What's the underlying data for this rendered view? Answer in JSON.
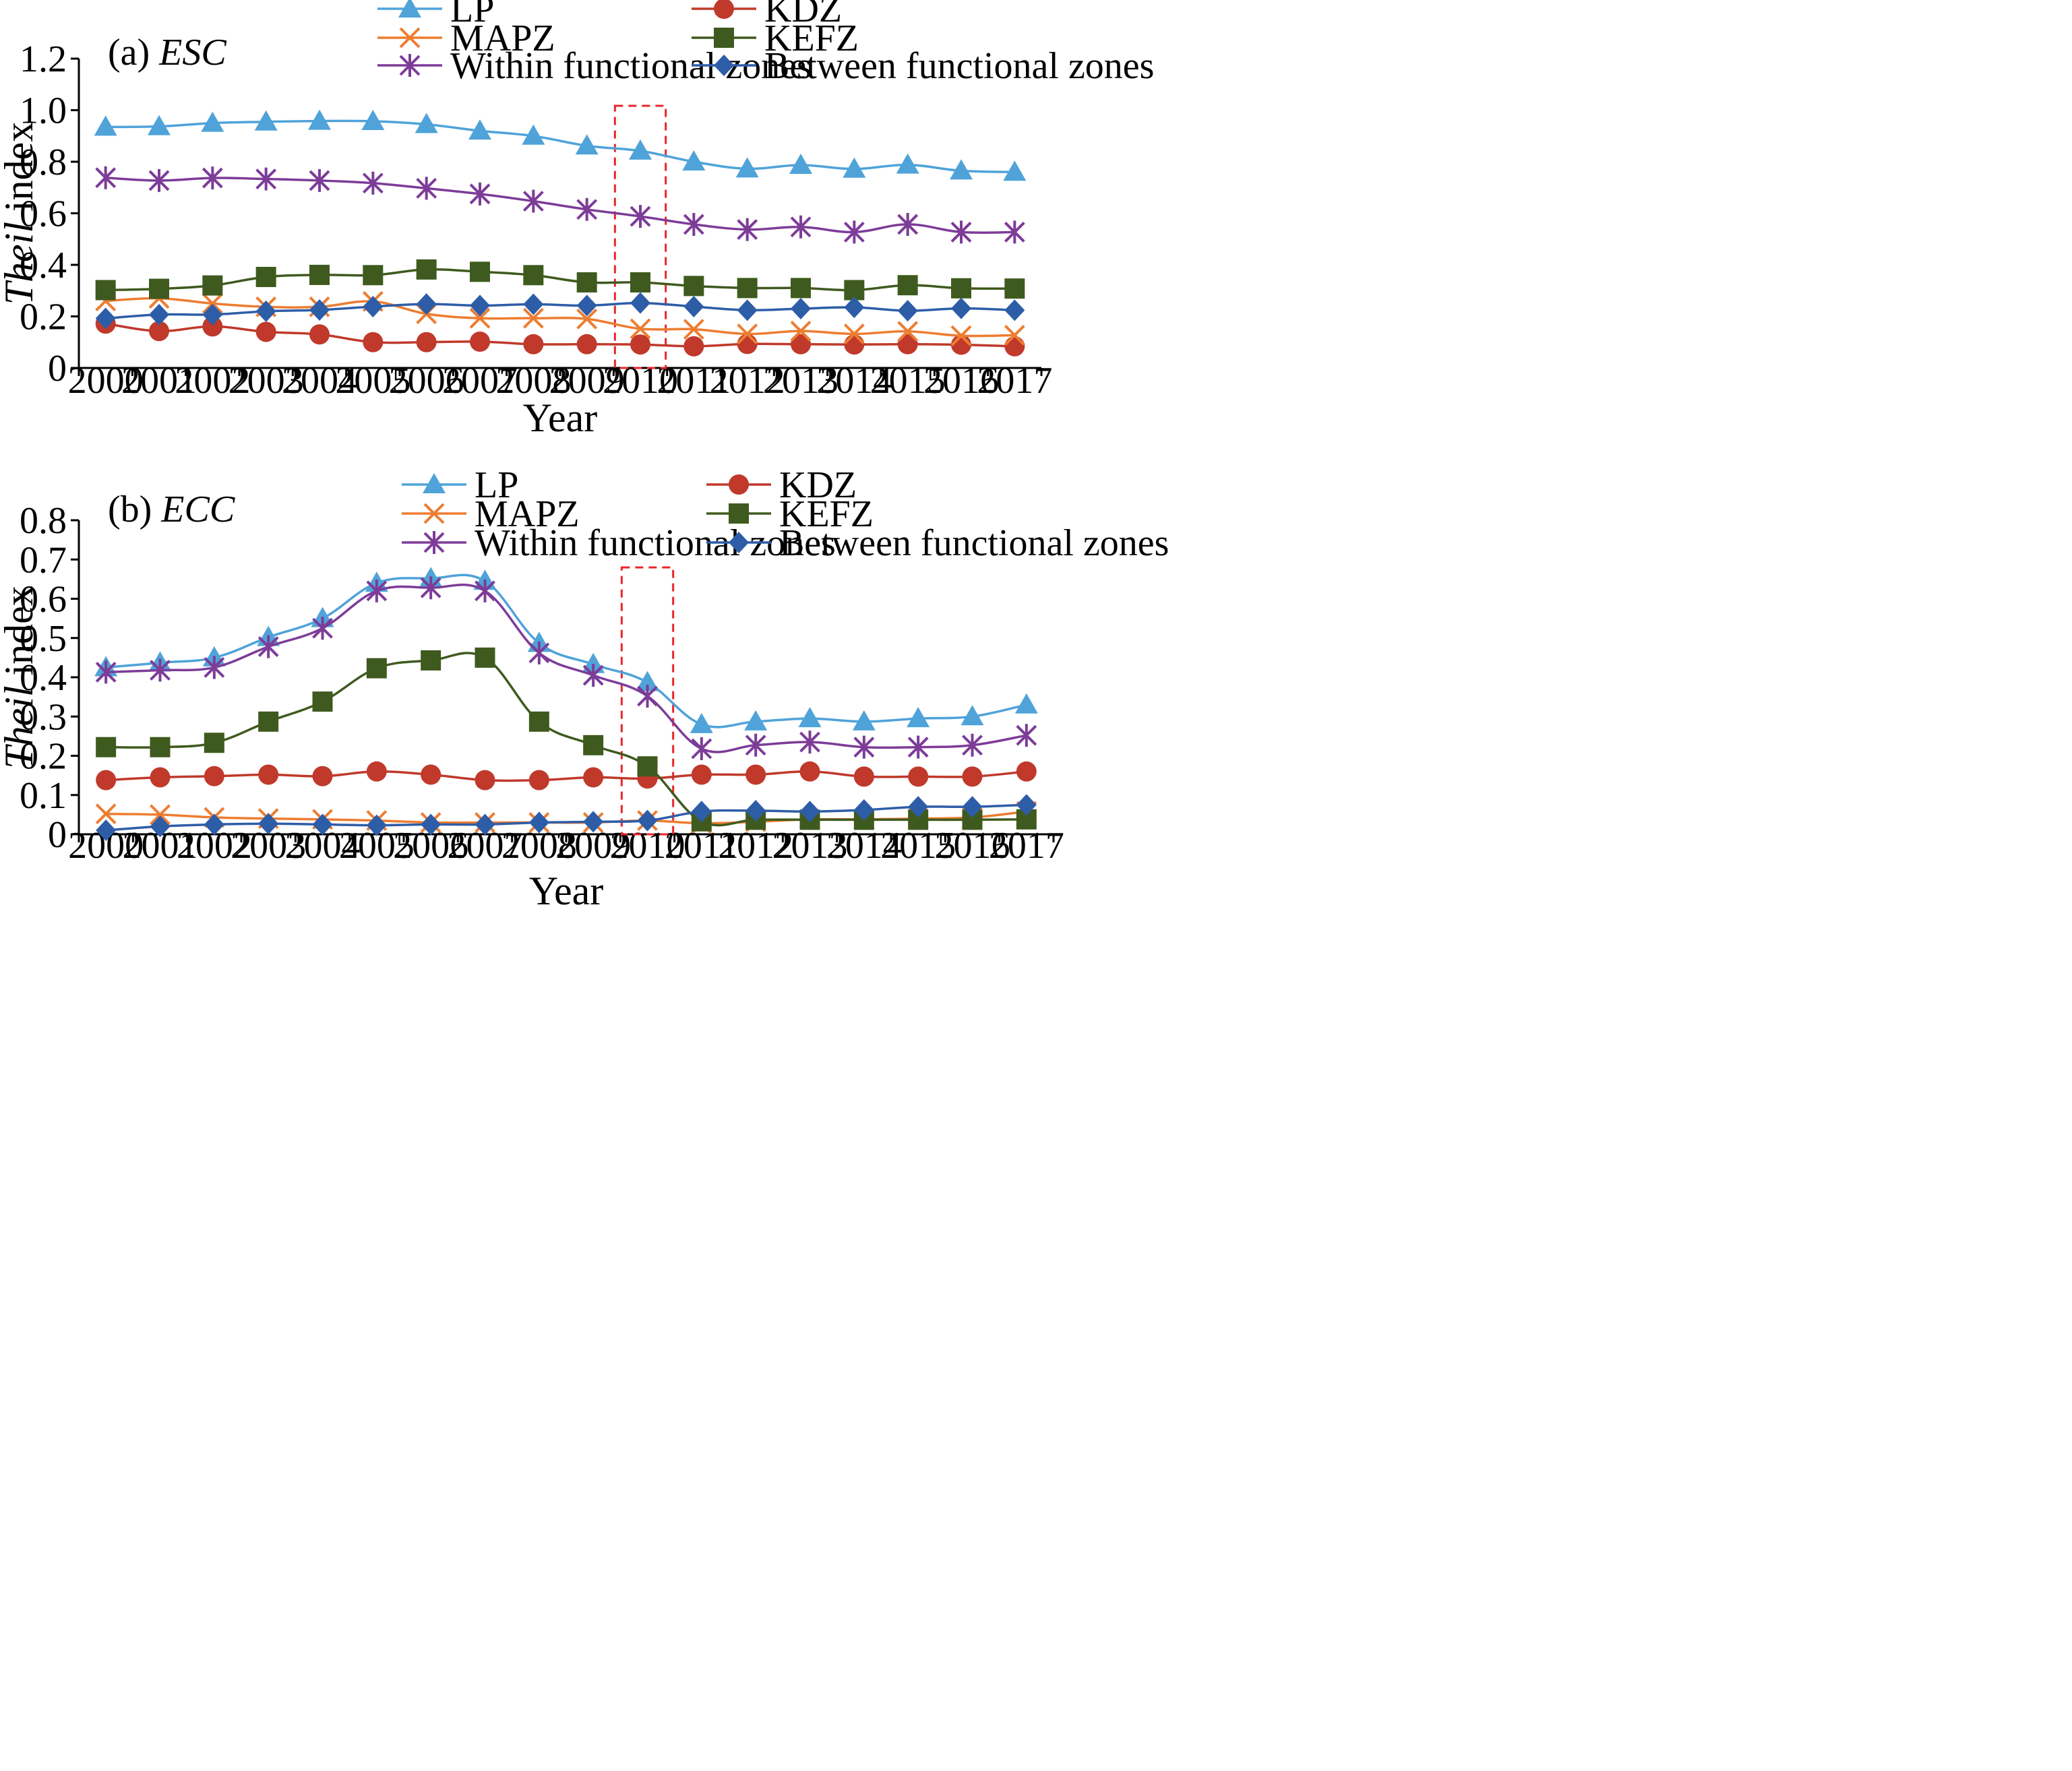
{
  "colors": {
    "LP": "#4FA3D9",
    "KDZ": "#C0392B",
    "MAPZ": "#ED7D31",
    "KEFZ": "#3F5A1E",
    "Within functional zones": "#7D3C98",
    "Between functional zones": "#2E5DA8",
    "highlight": "#E8262B"
  },
  "chart_data": [
    {
      "panel_label": "(a)",
      "panel_title": "ESC",
      "type": "line",
      "xlabel": "Year",
      "ylabel_italic": "Theil",
      "ylabel_rest": " index",
      "x": [
        "2000",
        "2001",
        "2002",
        "2003",
        "2004",
        "2005",
        "2006",
        "2007",
        "2008",
        "2009",
        "2010",
        "2011",
        "2012",
        "2013",
        "2014",
        "2015",
        "2016",
        "2017"
      ],
      "ylim": [
        0,
        1.2
      ],
      "yticks": [
        0,
        0.2,
        0.4,
        0.6,
        0.8,
        1.0,
        1.2
      ],
      "ytick_labels": [
        "0",
        "0.2",
        "0.4",
        "0.6",
        "0.8",
        "1.0",
        "1.2"
      ],
      "highlight_year": "2010",
      "legend_placement": "top",
      "series": [
        {
          "name": "LP",
          "marker": "triangle",
          "values": [
            0.935,
            0.937,
            0.95,
            0.955,
            0.958,
            0.957,
            0.945,
            0.92,
            0.9,
            0.862,
            0.842,
            0.8,
            0.773,
            0.787,
            0.772,
            0.788,
            0.765,
            0.76
          ]
        },
        {
          "name": "KDZ",
          "marker": "circle",
          "values": [
            0.172,
            0.143,
            0.161,
            0.14,
            0.13,
            0.1,
            0.1,
            0.102,
            0.092,
            0.092,
            0.091,
            0.084,
            0.093,
            0.092,
            0.091,
            0.092,
            0.09,
            0.084
          ]
        },
        {
          "name": "MAPZ",
          "marker": "x",
          "values": [
            0.26,
            0.27,
            0.25,
            0.237,
            0.237,
            0.258,
            0.21,
            0.193,
            0.193,
            0.19,
            0.152,
            0.15,
            0.132,
            0.143,
            0.132,
            0.142,
            0.125,
            0.127
          ]
        },
        {
          "name": "KEFZ",
          "marker": "square",
          "values": [
            0.302,
            0.307,
            0.32,
            0.353,
            0.361,
            0.36,
            0.382,
            0.373,
            0.36,
            0.332,
            0.332,
            0.318,
            0.31,
            0.31,
            0.302,
            0.321,
            0.309,
            0.308
          ]
        },
        {
          "name": "Within functional zones",
          "marker": "star",
          "values": [
            0.738,
            0.727,
            0.737,
            0.733,
            0.727,
            0.717,
            0.697,
            0.675,
            0.647,
            0.615,
            0.588,
            0.557,
            0.537,
            0.547,
            0.527,
            0.557,
            0.527,
            0.527
          ]
        },
        {
          "name": "Between functional zones",
          "marker": "diamond",
          "values": [
            0.192,
            0.207,
            0.207,
            0.22,
            0.225,
            0.238,
            0.248,
            0.242,
            0.247,
            0.242,
            0.252,
            0.238,
            0.224,
            0.23,
            0.235,
            0.222,
            0.231,
            0.224
          ]
        }
      ]
    },
    {
      "panel_label": "(b)",
      "panel_title": "ECC",
      "type": "line",
      "xlabel": "Year",
      "ylabel_italic": "Theil",
      "ylabel_rest": " index",
      "x": [
        "2000",
        "2001",
        "2002",
        "2003",
        "2004",
        "2005",
        "2006",
        "2007",
        "2008",
        "2009",
        "2010",
        "2011",
        "2012",
        "2013",
        "2014",
        "2015",
        "2016",
        "2017"
      ],
      "ylim": [
        0,
        0.8
      ],
      "yticks": [
        0,
        0.1,
        0.2,
        0.3,
        0.4,
        0.5,
        0.6,
        0.7,
        0.8
      ],
      "ytick_labels": [
        "0",
        "0.1",
        "0.2",
        "0.3",
        "0.4",
        "0.5",
        "0.6",
        "0.7",
        "0.8"
      ],
      "highlight_year": "2010",
      "legend_placement": "top",
      "series": [
        {
          "name": "LP",
          "marker": "triangle",
          "values": [
            0.425,
            0.437,
            0.45,
            0.502,
            0.55,
            0.64,
            0.652,
            0.645,
            0.487,
            0.433,
            0.387,
            0.28,
            0.287,
            0.295,
            0.287,
            0.295,
            0.3,
            0.33
          ]
        },
        {
          "name": "KDZ",
          "marker": "circle",
          "values": [
            0.138,
            0.145,
            0.148,
            0.152,
            0.148,
            0.16,
            0.152,
            0.138,
            0.138,
            0.145,
            0.142,
            0.152,
            0.152,
            0.16,
            0.147,
            0.147,
            0.147,
            0.16
          ]
        },
        {
          "name": "MAPZ",
          "marker": "x",
          "values": [
            0.052,
            0.05,
            0.043,
            0.04,
            0.038,
            0.035,
            0.03,
            0.03,
            0.03,
            0.03,
            0.035,
            0.028,
            0.032,
            0.038,
            0.038,
            0.04,
            0.043,
            0.058
          ]
        },
        {
          "name": "KEFZ",
          "marker": "square",
          "values": [
            0.222,
            0.222,
            0.233,
            0.287,
            0.338,
            0.423,
            0.443,
            0.45,
            0.287,
            0.227,
            0.173,
            0.033,
            0.037,
            0.037,
            0.037,
            0.037,
            0.037,
            0.038
          ]
        },
        {
          "name": "Within functional zones",
          "marker": "star",
          "values": [
            0.413,
            0.418,
            0.425,
            0.478,
            0.525,
            0.62,
            0.628,
            0.62,
            0.462,
            0.405,
            0.352,
            0.218,
            0.227,
            0.235,
            0.222,
            0.222,
            0.227,
            0.252
          ]
        },
        {
          "name": "Between functional zones",
          "marker": "diamond",
          "values": [
            0.01,
            0.02,
            0.025,
            0.027,
            0.025,
            0.023,
            0.025,
            0.025,
            0.03,
            0.032,
            0.035,
            0.058,
            0.06,
            0.058,
            0.062,
            0.07,
            0.07,
            0.075
          ]
        }
      ]
    }
  ]
}
